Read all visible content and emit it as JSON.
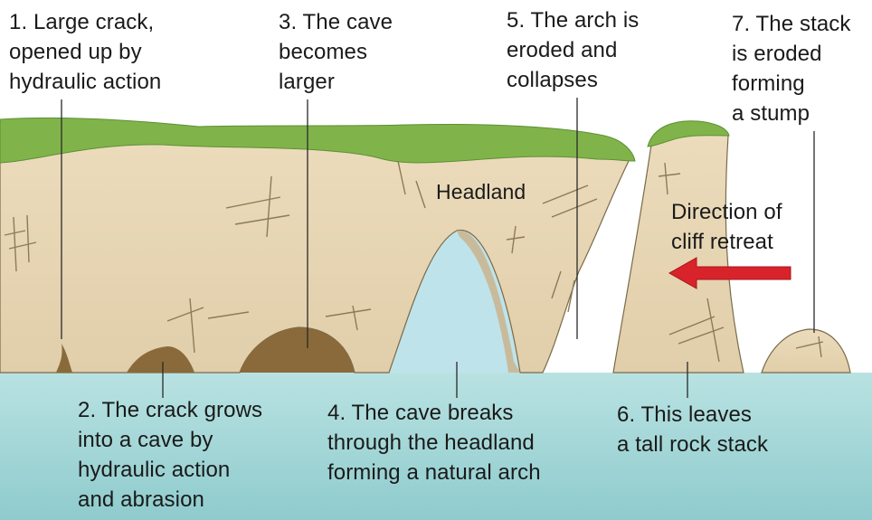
{
  "labels": {
    "stage1": "1. Large crack,\nopened up by\nhydraulic action",
    "stage2": "2. The crack grows\ninto a cave by\nhydraulic action\nand abrasion",
    "stage3": "3. The cave\nbecomes\nlarger",
    "stage4": "4. The cave breaks\nthrough the headland\nforming a natural arch",
    "stage5": "5. The arch is\neroded and\ncollapses",
    "stage6": "6. This leaves\na tall rock stack",
    "stage7": "7. The stack\nis eroded\nforming\na stump",
    "headland": "Headland",
    "direction": "Direction of\ncliff retreat"
  },
  "colors": {
    "sea": "#9fd4d6",
    "sea_deep": "#7cc2c6",
    "cliff": "#e8d7b5",
    "cliff_shadow": "#c9b48e",
    "grass": "#7fb24a",
    "cave": "#8a6a3a",
    "arrow": "#d9232a"
  }
}
